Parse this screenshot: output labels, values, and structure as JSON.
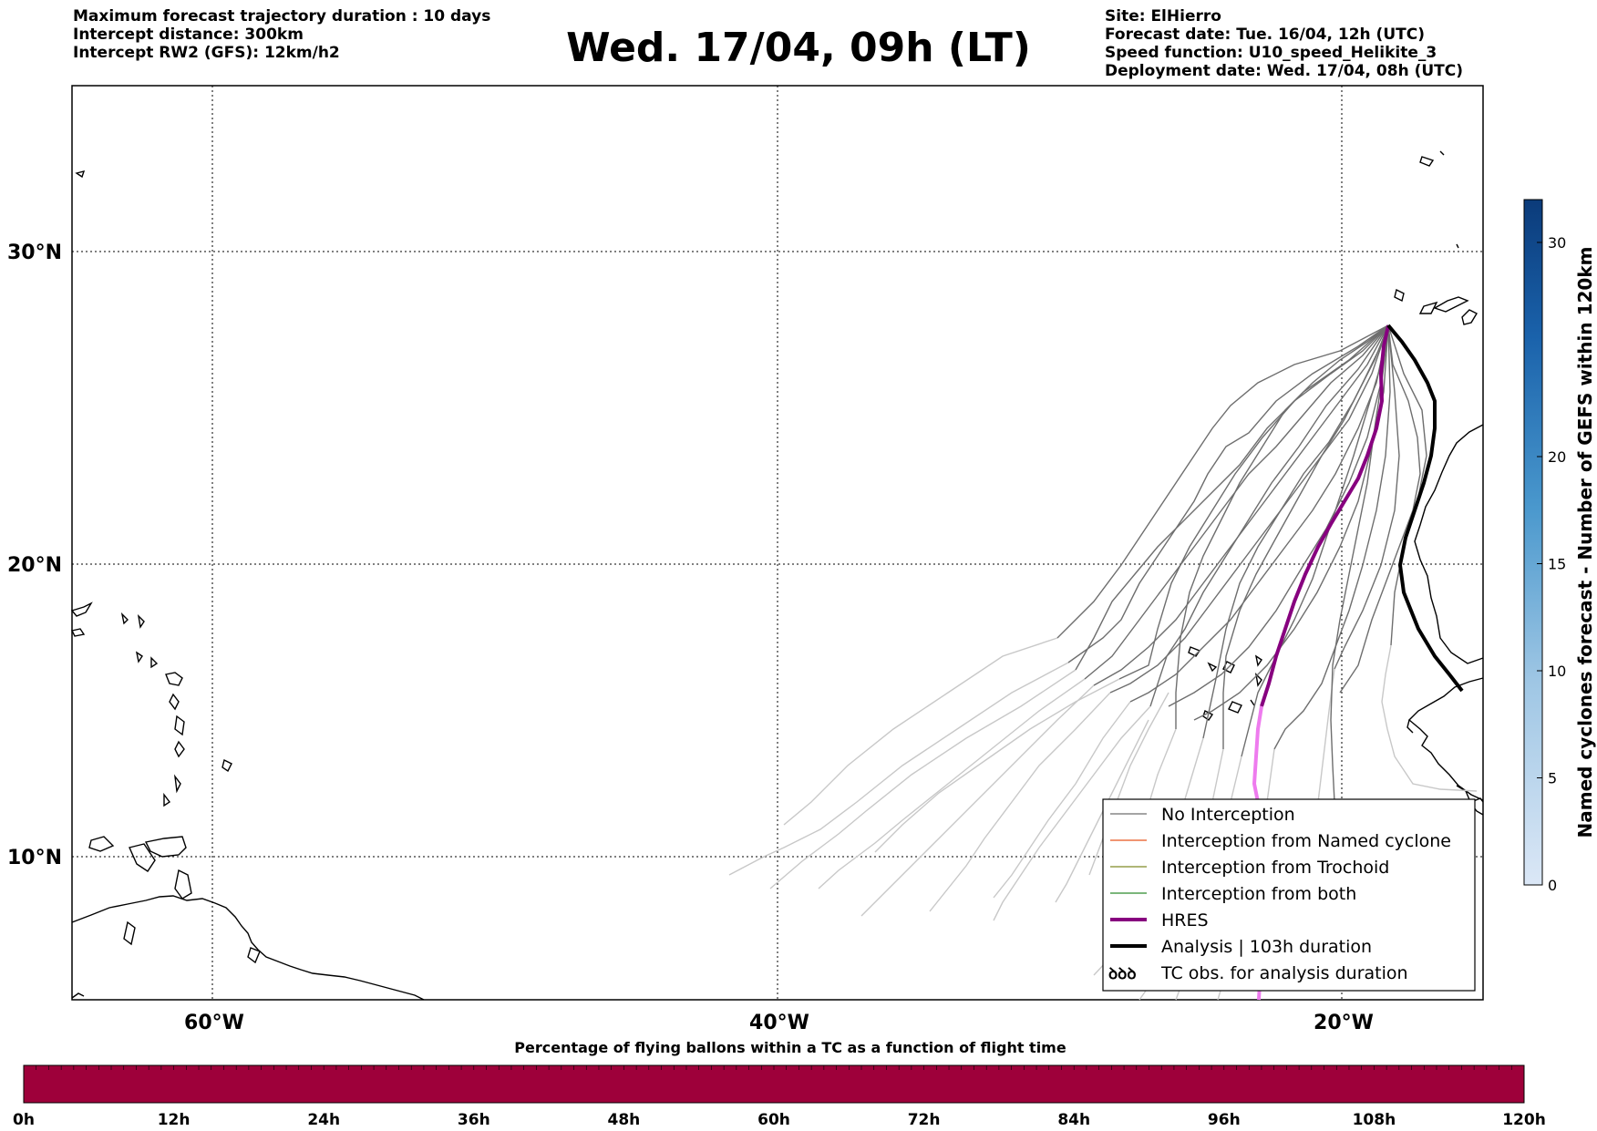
{
  "header": {
    "left_lines": [
      "Maximum forecast trajectory duration : 10 days",
      "Intercept distance: 300km",
      "Intercept RW2 (GFS):  12km/h2"
    ],
    "title": "Wed. 17/04, 09h (LT)",
    "right_lines": [
      "Site: ElHierro",
      "Forecast date: Tue. 16/04, 12h (UTC)",
      "Speed function: U10_speed_Helikite_3",
      "Deployment date: Wed. 17/04, 08h (UTC)"
    ]
  },
  "map": {
    "lat_labels": [
      "30°N",
      "20°N",
      "10°N"
    ],
    "lon_labels": [
      "60°W",
      "40°W",
      "20°W"
    ],
    "colors": {
      "no_interception": "#6e6e6e",
      "older_tracks": "#c8c8c8",
      "named_cyclone": "#e8561e",
      "trochoid": "#7f8b26",
      "both": "#2c8a2c",
      "hres": "#87007f",
      "hres_late": "#ee7bee",
      "analysis": "#000000",
      "coast": "#000000"
    }
  },
  "legend": {
    "items": [
      {
        "label": "No Interception",
        "color": "#6e6e6e",
        "style": "thin"
      },
      {
        "label": "Interception from Named cyclone",
        "color": "#e8561e",
        "style": "thin"
      },
      {
        "label": "Interception from Trochoid",
        "color": "#7f8b26",
        "style": "thin"
      },
      {
        "label": "Interception from both",
        "color": "#2c8a2c",
        "style": "thin"
      },
      {
        "label": "HRES",
        "color": "#87007f",
        "style": "thick"
      },
      {
        "label": "Analysis | 103h duration",
        "color": "#000000",
        "style": "thick"
      },
      {
        "label": "TC obs. for analysis duration",
        "color": "#000000",
        "style": "symbol",
        "symbol": "ꝺꝺꝺ"
      }
    ]
  },
  "colorbar_right": {
    "label": "Named cyclones forecast - Number of GEFS within 120km",
    "ticks": [
      "0",
      "5",
      "10",
      "15",
      "20",
      "30"
    ],
    "tick_values": [
      0,
      5,
      10,
      15,
      20,
      30
    ],
    "max": 32,
    "color_low": "#dbe7f6",
    "color_high": "#0b3b7a"
  },
  "colorbar_bottom": {
    "title": "Percentage of flying ballons within a TC as a function of flight time",
    "ticks": [
      "0h",
      "12h",
      "24h",
      "36h",
      "48h",
      "60h",
      "72h",
      "84h",
      "96h",
      "108h",
      "120h"
    ],
    "fill_color": "#9e003a"
  }
}
